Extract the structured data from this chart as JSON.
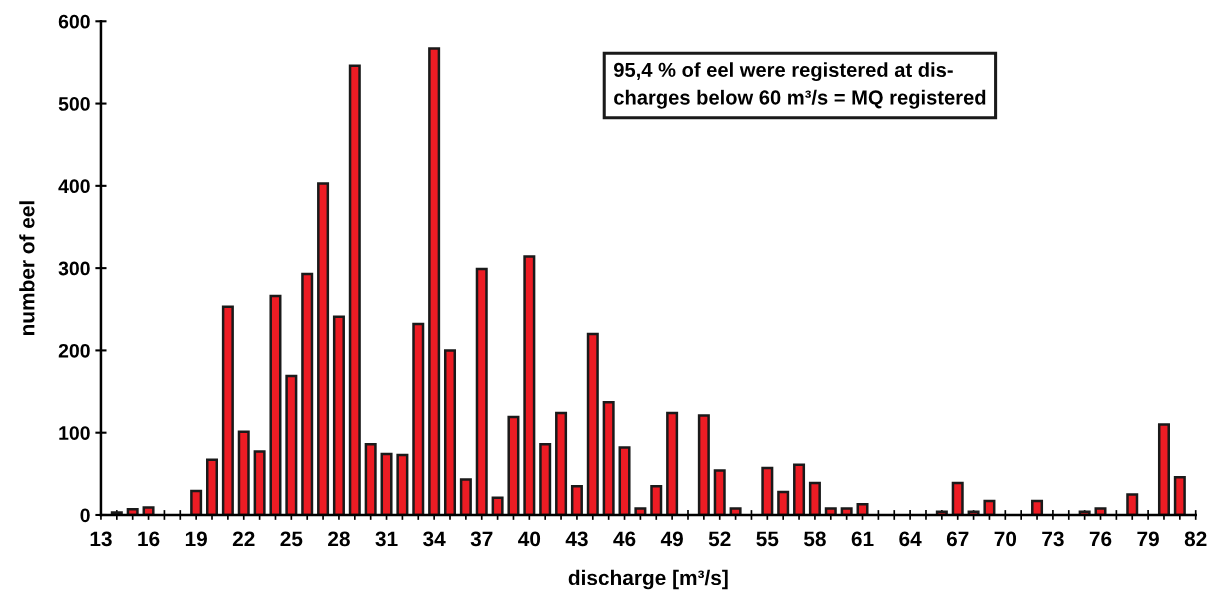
{
  "chart_data": {
    "type": "bar",
    "xlabel": "discharge [m³/s]",
    "ylabel": "number of eel",
    "categories": [
      "13",
      null,
      null,
      "16",
      null,
      null,
      "19",
      null,
      null,
      "22",
      null,
      null,
      "25",
      null,
      null,
      "28",
      null,
      null,
      "31",
      null,
      null,
      "34",
      null,
      null,
      "37",
      null,
      null,
      "40",
      null,
      null,
      "43",
      null,
      null,
      "46",
      null,
      null,
      "49",
      null,
      null,
      "52",
      null,
      null,
      "55",
      null,
      null,
      "58",
      null,
      null,
      "61",
      null,
      null,
      "64",
      null,
      null,
      "67",
      null,
      null,
      "70",
      null,
      null,
      "73",
      null,
      null,
      "76",
      null,
      null,
      "79",
      null,
      null,
      "82"
    ],
    "values": [
      0,
      3,
      7,
      9,
      0,
      0,
      29,
      67,
      253,
      101,
      77,
      266,
      169,
      293,
      403,
      241,
      546,
      86,
      74,
      73,
      232,
      567,
      200,
      43,
      299,
      21,
      119,
      314,
      86,
      124,
      35,
      220,
      137,
      82,
      8,
      35,
      124,
      0,
      121,
      54,
      8,
      0,
      57,
      28,
      61,
      39,
      8,
      8,
      13,
      0,
      0,
      0,
      0,
      4,
      39,
      4,
      17,
      0,
      0,
      17,
      0,
      0,
      4,
      8,
      0,
      25,
      0,
      110,
      46,
      0
    ],
    "color": "#ed1c24",
    "ylim": [
      0,
      600
    ],
    "yticks": [
      0,
      100,
      200,
      300,
      400,
      500,
      600
    ],
    "grid": false,
    "annotations": [
      "95,4 % of eel were registered at dis-\ncharges below 60 m³/s = MQ registered"
    ]
  }
}
